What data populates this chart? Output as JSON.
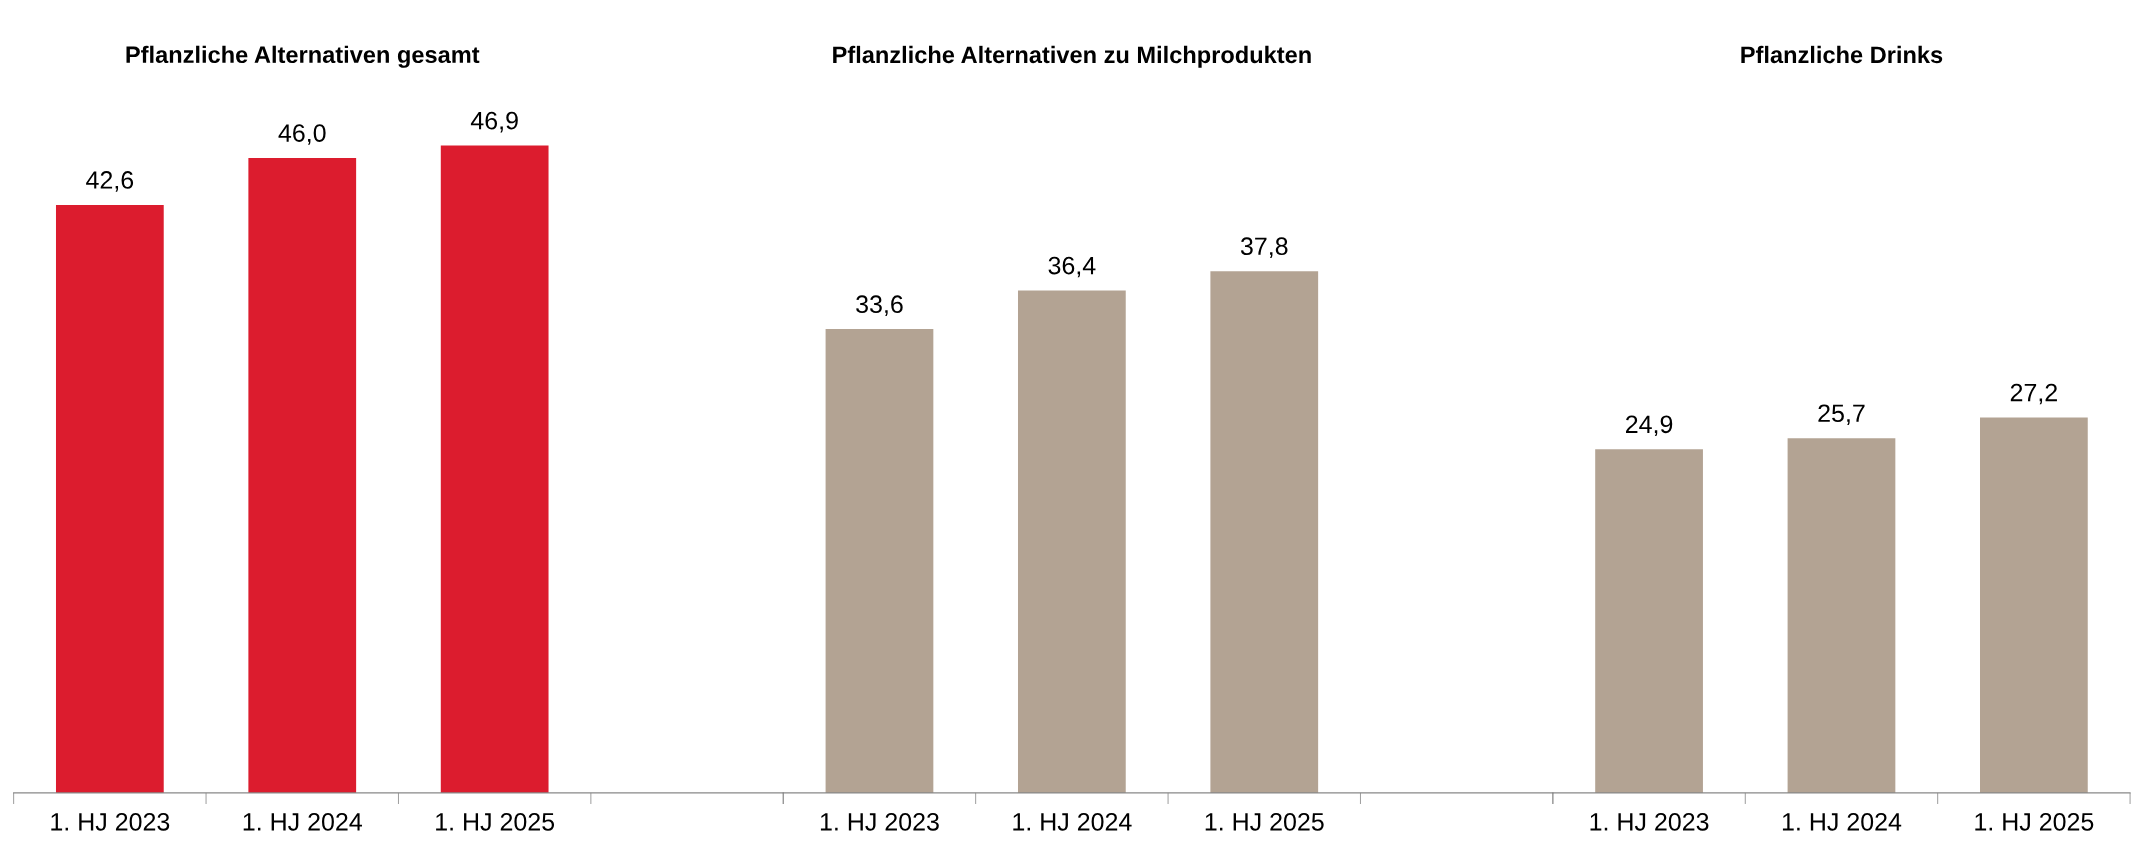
{
  "chart_data": [
    {
      "type": "bar",
      "title": "Pflanzliche Alternativen gesamt",
      "categories": [
        "1. HJ 2023",
        "1. HJ 2024",
        "1. HJ 2025"
      ],
      "values": [
        42.6,
        46.0,
        46.9
      ],
      "value_labels": [
        "42,6",
        "46,0",
        "46,9"
      ],
      "color": "#dc1c2e"
    },
    {
      "type": "bar",
      "title": "Pflanzliche Alternativen zu Milchprodukten",
      "categories": [
        "1. HJ 2023",
        "1. HJ 2024",
        "1. HJ 2025"
      ],
      "values": [
        33.6,
        36.4,
        37.8
      ],
      "value_labels": [
        "33,6",
        "36,4",
        "37,8"
      ],
      "color": "#b3a393"
    },
    {
      "type": "bar",
      "title": "Pflanzliche Drinks",
      "categories": [
        "1. HJ 2023",
        "1. HJ 2024",
        "1. HJ 2025"
      ],
      "values": [
        24.9,
        25.7,
        27.2
      ],
      "value_labels": [
        "24,9",
        "25,7",
        "27,2"
      ],
      "color": "#b3a393"
    }
  ]
}
